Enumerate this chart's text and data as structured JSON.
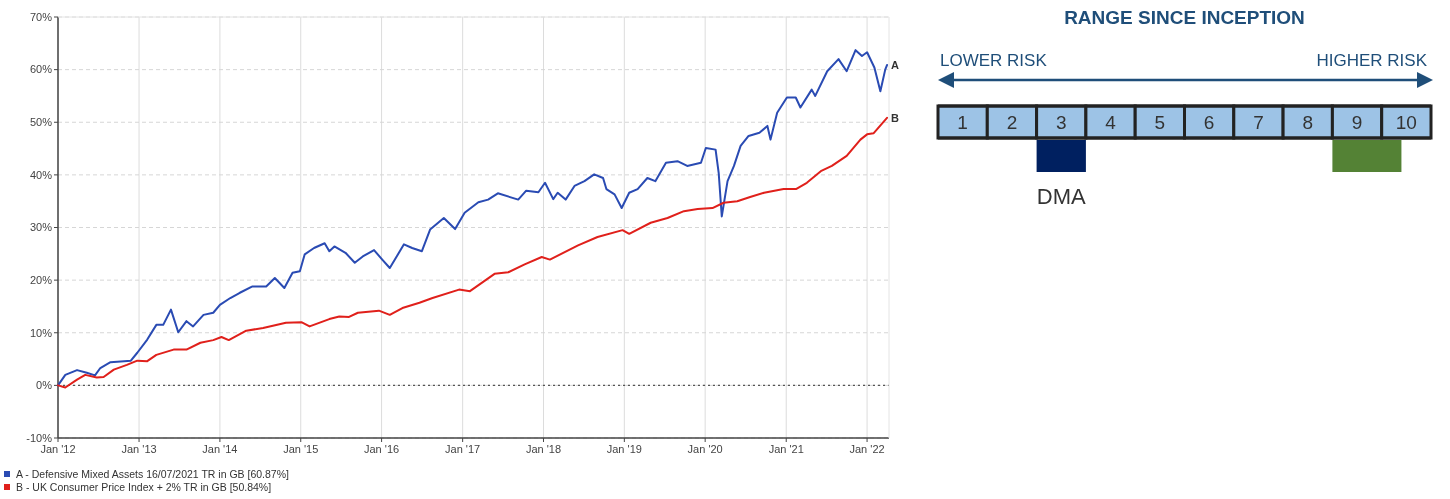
{
  "chart_data": [
    {
      "type": "line",
      "xlim": [
        "2012-01-01",
        "2022-04-10"
      ],
      "ylim": [
        -10,
        70
      ],
      "xticks": [
        {
          "value": "2012-01-01",
          "label": "Jan '12"
        },
        {
          "value": "2013-01-01",
          "label": "Jan '13"
        },
        {
          "value": "2014-01-01",
          "label": "Jan '14"
        },
        {
          "value": "2015-01-01",
          "label": "Jan '15"
        },
        {
          "value": "2016-01-01",
          "label": "Jan '16"
        },
        {
          "value": "2017-01-01",
          "label": "Jan '17"
        },
        {
          "value": "2018-01-01",
          "label": "Jan '18"
        },
        {
          "value": "2019-01-01",
          "label": "Jan '19"
        },
        {
          "value": "2020-01-01",
          "label": "Jan '20"
        },
        {
          "value": "2021-01-01",
          "label": "Jan '21"
        },
        {
          "value": "2022-01-01",
          "label": "Jan '22"
        }
      ],
      "yticks": [
        {
          "value": -10,
          "label": "-10%"
        },
        {
          "value": 0,
          "label": "0%"
        },
        {
          "value": 10,
          "label": "10%"
        },
        {
          "value": 20,
          "label": "20%"
        },
        {
          "value": 30,
          "label": "30%"
        },
        {
          "value": 40,
          "label": "40%"
        },
        {
          "value": 50,
          "label": "50%"
        },
        {
          "value": 60,
          "label": "60%"
        },
        {
          "value": 70,
          "label": "70%"
        }
      ],
      "grid": true,
      "legend": "bottom",
      "line_style": "solid",
      "ref_lines": [
        {
          "axis": "y",
          "value": 0,
          "color": "#555555",
          "line_style": "dotted"
        }
      ],
      "annotations": [
        {
          "text": "A",
          "x": "2022-04-01",
          "y": 60.87
        },
        {
          "text": "B",
          "x": "2022-04-01",
          "y": 50.84
        }
      ],
      "series": [
        {
          "name": "A - Defensive Mixed Assets 16/07/2021 TR in GB [60.87%]",
          "color": "#2a4bb3",
          "x": [
            "2012-01-01",
            "2012-02-03",
            "2012-03-27",
            "2012-05-10",
            "2012-06-16",
            "2012-07-10",
            "2012-08-25",
            "2012-11-25",
            "2012-12-24",
            "2013-02-07",
            "2013-03-20",
            "2013-04-20",
            "2013-05-25",
            "2013-06-27",
            "2013-08-03",
            "2013-09-02",
            "2013-10-19",
            "2013-12-02",
            "2014-01-01",
            "2014-02-17",
            "2014-04-01",
            "2014-05-28",
            "2014-07-29",
            "2014-09-06",
            "2014-10-19",
            "2014-11-25",
            "2014-12-28",
            "2015-01-19",
            "2015-03-02",
            "2015-04-19",
            "2015-05-10",
            "2015-06-02",
            "2015-07-22",
            "2015-09-02",
            "2015-10-08",
            "2015-11-28",
            "2016-01-04",
            "2016-02-07",
            "2016-04-11",
            "2016-05-18",
            "2016-07-01",
            "2016-08-07",
            "2016-10-08",
            "2016-11-28",
            "2017-01-10",
            "2017-03-13",
            "2017-04-26",
            "2017-06-09",
            "2017-09-09",
            "2017-10-15",
            "2017-12-09",
            "2018-01-08",
            "2018-02-14",
            "2018-03-06",
            "2018-04-11",
            "2018-05-21",
            "2018-07-05",
            "2018-08-18",
            "2018-09-27",
            "2018-10-12",
            "2018-11-18",
            "2018-12-20",
            "2019-01-23",
            "2019-03-02",
            "2019-04-15",
            "2019-05-21",
            "2019-07-08",
            "2019-08-29",
            "2019-10-12",
            "2019-12-13",
            "2020-01-04",
            "2020-02-17",
            "2020-03-02",
            "2020-03-16",
            "2020-04-11",
            "2020-05-10",
            "2020-06-09",
            "2020-07-15",
            "2020-09-02",
            "2020-10-08",
            "2020-10-22",
            "2020-11-21",
            "2021-01-04",
            "2021-02-13",
            "2021-03-06",
            "2021-04-26",
            "2021-05-12",
            "2021-07-05",
            "2021-08-25",
            "2021-10-01",
            "2021-11-10",
            "2021-12-09",
            "2022-01-01",
            "2022-02-03",
            "2022-03-02",
            "2022-03-24",
            "2022-04-01"
          ],
          "values": [
            0,
            2.0,
            2.9,
            2.4,
            1.9,
            3.3,
            4.4,
            4.7,
            6.2,
            8.7,
            11.5,
            11.5,
            14.4,
            10.1,
            12.2,
            11.2,
            13.4,
            13.8,
            15.3,
            16.6,
            17.6,
            18.8,
            18.8,
            20.4,
            18.5,
            21.4,
            21.7,
            24.9,
            26.1,
            27.0,
            25.5,
            26.4,
            25.2,
            23.3,
            24.5,
            25.7,
            23.9,
            22.3,
            26.8,
            26.1,
            25.5,
            29.6,
            31.8,
            29.7,
            32.8,
            34.8,
            35.3,
            36.5,
            35.3,
            37.0,
            36.7,
            38.5,
            35.4,
            36.6,
            35.3,
            37.9,
            38.8,
            40.1,
            39.4,
            37.3,
            36.3,
            33.7,
            36.6,
            37.3,
            39.4,
            38.8,
            42.3,
            42.6,
            41.7,
            42.3,
            45.1,
            44.8,
            40.4,
            32.1,
            38.8,
            41.7,
            45.5,
            47.4,
            48.0,
            49.3,
            46.7,
            51.8,
            54.7,
            54.7,
            52.8,
            56.2,
            55.0,
            59.7,
            62.0,
            59.7,
            63.7,
            62.6,
            63.3,
            60.4,
            55.9,
            60.0,
            60.87
          ]
        },
        {
          "name": "B - UK Consumer Price Index + 2% TR in GB [50.84%]",
          "color": "#e0201b",
          "x": [
            "2012-01-01",
            "2012-02-03",
            "2012-03-27",
            "2012-05-03",
            "2012-06-24",
            "2012-07-25",
            "2012-09-09",
            "2012-11-07",
            "2012-12-24",
            "2013-02-07",
            "2013-03-20",
            "2013-06-06",
            "2013-08-03",
            "2013-10-05",
            "2013-12-02",
            "2014-01-08",
            "2014-02-10",
            "2014-04-30",
            "2014-07-15",
            "2014-10-26",
            "2015-01-04",
            "2015-02-10",
            "2015-05-10",
            "2015-06-24",
            "2015-08-07",
            "2015-09-16",
            "2015-12-20",
            "2016-02-07",
            "2016-04-04",
            "2016-06-20",
            "2016-08-18",
            "2016-12-16",
            "2017-02-03",
            "2017-05-25",
            "2017-07-26",
            "2017-10-08",
            "2017-12-24",
            "2018-01-30",
            "2018-06-06",
            "2018-09-02",
            "2018-12-24",
            "2019-01-23",
            "2019-04-30",
            "2019-07-15",
            "2019-09-27",
            "2019-11-28",
            "2020-02-03",
            "2020-03-24",
            "2020-05-25",
            "2020-07-22",
            "2020-09-23",
            "2020-12-20",
            "2021-02-14",
            "2021-04-04",
            "2021-06-06",
            "2021-07-26",
            "2021-10-01",
            "2021-12-02",
            "2022-01-01",
            "2022-01-30",
            "2022-04-01"
          ],
          "values": [
            0,
            -0.4,
            1.1,
            2.0,
            1.5,
            1.6,
            3.0,
            3.9,
            4.7,
            4.6,
            5.8,
            6.8,
            6.8,
            8.1,
            8.6,
            9.2,
            8.6,
            10.4,
            10.9,
            11.9,
            12.0,
            11.2,
            12.6,
            13.1,
            13.0,
            13.8,
            14.2,
            13.4,
            14.7,
            15.7,
            16.6,
            18.2,
            17.9,
            21.2,
            21.5,
            23.0,
            24.4,
            23.9,
            26.6,
            28.2,
            29.5,
            28.8,
            30.9,
            31.8,
            33.1,
            33.5,
            33.7,
            34.7,
            35.0,
            35.8,
            36.6,
            37.3,
            37.3,
            38.5,
            40.7,
            41.7,
            43.6,
            46.7,
            47.7,
            47.9,
            50.84
          ]
        }
      ]
    },
    {
      "type": "bar",
      "orientation": "horizontal",
      "title": "RANGE SINCE INCEPTION",
      "categories": [
        null
      ],
      "xlim": [
        0.5,
        10.5
      ],
      "xticks": [
        1,
        2,
        3,
        4,
        5,
        6,
        7,
        8,
        9,
        10
      ],
      "annotations": [
        "LOWER RISK",
        "HIGHER RISK"
      ],
      "series": [
        {
          "name": "DMA",
          "color": "#002060",
          "base": [
            2.5
          ],
          "values": [
            1
          ]
        },
        {
          "color": "#548235",
          "base": [
            8.5
          ],
          "values": [
            1.4
          ]
        }
      ]
    }
  ]
}
